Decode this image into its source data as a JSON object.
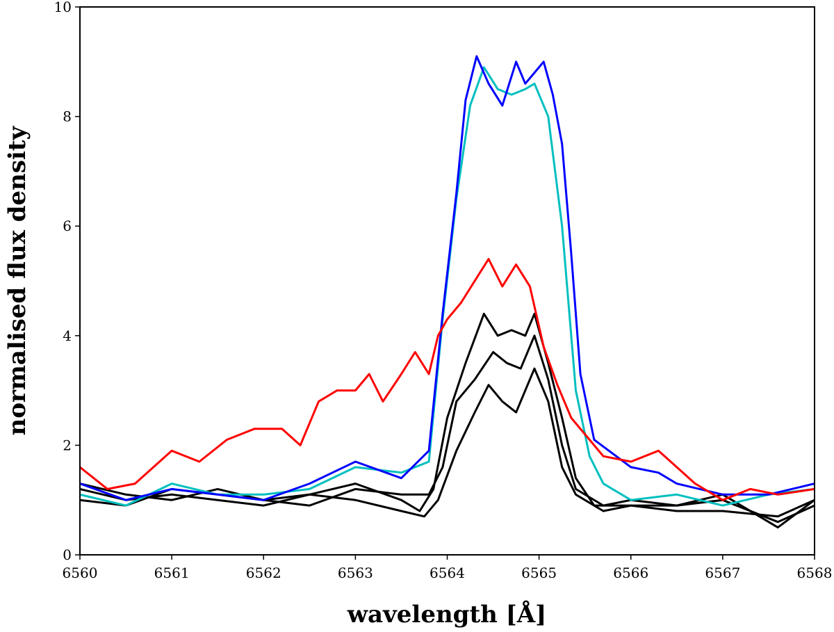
{
  "chart_data": {
    "type": "line",
    "title": "",
    "xlabel": "wavelength [Å]",
    "ylabel": "normalised flux density",
    "xlim": [
      6560,
      6568
    ],
    "ylim": [
      0,
      10
    ],
    "xticks": [
      6560,
      6561,
      6562,
      6563,
      6564,
      6565,
      6566,
      6567,
      6568
    ],
    "yticks": [
      0,
      2,
      4,
      6,
      8,
      10
    ],
    "grid": false,
    "legend": "none",
    "colors": {
      "red": "#ff0000",
      "blue": "#0000ff",
      "cyan": "#00bfbf",
      "black": "#000000"
    },
    "series": [
      {
        "color": "black",
        "points": [
          [
            6560.0,
            1.2
          ],
          [
            6560.5,
            1.0
          ],
          [
            6561.0,
            1.1
          ],
          [
            6561.5,
            1.0
          ],
          [
            6562.0,
            0.9
          ],
          [
            6562.5,
            1.1
          ],
          [
            6563.0,
            1.3
          ],
          [
            6563.5,
            1.0
          ],
          [
            6563.7,
            0.8
          ],
          [
            6563.85,
            1.2
          ],
          [
            6564.0,
            2.5
          ],
          [
            6564.2,
            3.5
          ],
          [
            6564.4,
            4.4
          ],
          [
            6564.55,
            4.0
          ],
          [
            6564.7,
            4.1
          ],
          [
            6564.85,
            4.0
          ],
          [
            6564.95,
            4.4
          ],
          [
            6565.1,
            3.5
          ],
          [
            6565.25,
            2.5
          ],
          [
            6565.4,
            1.4
          ],
          [
            6565.6,
            0.9
          ],
          [
            6566.0,
            0.9
          ],
          [
            6566.5,
            0.8
          ],
          [
            6567.0,
            0.8
          ],
          [
            6567.6,
            0.7
          ],
          [
            6568.0,
            1.0
          ]
        ]
      },
      {
        "color": "black",
        "points": [
          [
            6560.0,
            1.3
          ],
          [
            6560.5,
            1.1
          ],
          [
            6561.0,
            1.0
          ],
          [
            6561.5,
            1.2
          ],
          [
            6562.0,
            1.0
          ],
          [
            6562.5,
            0.9
          ],
          [
            6563.0,
            1.2
          ],
          [
            6563.5,
            1.1
          ],
          [
            6563.8,
            1.1
          ],
          [
            6563.95,
            1.6
          ],
          [
            6564.1,
            2.8
          ],
          [
            6564.3,
            3.2
          ],
          [
            6564.5,
            3.7
          ],
          [
            6564.65,
            3.5
          ],
          [
            6564.8,
            3.4
          ],
          [
            6564.95,
            4.0
          ],
          [
            6565.1,
            3.2
          ],
          [
            6565.25,
            2.0
          ],
          [
            6565.4,
            1.2
          ],
          [
            6565.7,
            0.9
          ],
          [
            6566.0,
            1.0
          ],
          [
            6566.5,
            0.9
          ],
          [
            6567.0,
            1.0
          ],
          [
            6567.6,
            0.6
          ],
          [
            6568.0,
            0.9
          ]
        ]
      },
      {
        "color": "black",
        "points": [
          [
            6560.0,
            1.0
          ],
          [
            6560.5,
            0.9
          ],
          [
            6561.0,
            1.2
          ],
          [
            6561.5,
            1.1
          ],
          [
            6562.0,
            1.0
          ],
          [
            6562.5,
            1.1
          ],
          [
            6563.0,
            1.0
          ],
          [
            6563.5,
            0.8
          ],
          [
            6563.75,
            0.7
          ],
          [
            6563.9,
            1.0
          ],
          [
            6564.1,
            1.9
          ],
          [
            6564.3,
            2.6
          ],
          [
            6564.45,
            3.1
          ],
          [
            6564.6,
            2.8
          ],
          [
            6564.75,
            2.6
          ],
          [
            6564.95,
            3.4
          ],
          [
            6565.1,
            2.8
          ],
          [
            6565.25,
            1.6
          ],
          [
            6565.4,
            1.1
          ],
          [
            6565.7,
            0.8
          ],
          [
            6566.0,
            0.9
          ],
          [
            6566.5,
            0.9
          ],
          [
            6567.0,
            1.1
          ],
          [
            6567.6,
            0.5
          ],
          [
            6568.0,
            1.0
          ]
        ]
      },
      {
        "color": "cyan",
        "points": [
          [
            6560.0,
            1.1
          ],
          [
            6560.5,
            0.9
          ],
          [
            6561.0,
            1.3
          ],
          [
            6561.5,
            1.1
          ],
          [
            6562.0,
            1.1
          ],
          [
            6562.5,
            1.2
          ],
          [
            6563.0,
            1.6
          ],
          [
            6563.5,
            1.5
          ],
          [
            6563.8,
            1.7
          ],
          [
            6563.95,
            4.3
          ],
          [
            6564.1,
            6.5
          ],
          [
            6564.25,
            8.2
          ],
          [
            6564.4,
            8.9
          ],
          [
            6564.55,
            8.5
          ],
          [
            6564.7,
            8.4
          ],
          [
            6564.85,
            8.5
          ],
          [
            6564.95,
            8.6
          ],
          [
            6565.1,
            8.0
          ],
          [
            6565.25,
            6.0
          ],
          [
            6565.4,
            3.0
          ],
          [
            6565.55,
            1.8
          ],
          [
            6565.7,
            1.3
          ],
          [
            6566.0,
            1.0
          ],
          [
            6566.5,
            1.1
          ],
          [
            6567.0,
            0.9
          ],
          [
            6567.5,
            1.1
          ],
          [
            6568.0,
            1.2
          ]
        ]
      },
      {
        "color": "blue",
        "points": [
          [
            6560.0,
            1.3
          ],
          [
            6560.5,
            1.0
          ],
          [
            6561.0,
            1.2
          ],
          [
            6561.5,
            1.1
          ],
          [
            6562.0,
            1.0
          ],
          [
            6562.5,
            1.3
          ],
          [
            6563.0,
            1.7
          ],
          [
            6563.5,
            1.4
          ],
          [
            6563.8,
            1.9
          ],
          [
            6563.95,
            4.4
          ],
          [
            6564.1,
            6.6
          ],
          [
            6564.2,
            8.3
          ],
          [
            6564.32,
            9.1
          ],
          [
            6564.45,
            8.6
          ],
          [
            6564.6,
            8.2
          ],
          [
            6564.75,
            9.0
          ],
          [
            6564.85,
            8.6
          ],
          [
            6564.95,
            8.8
          ],
          [
            6565.05,
            9.0
          ],
          [
            6565.15,
            8.4
          ],
          [
            6565.25,
            7.5
          ],
          [
            6565.35,
            5.5
          ],
          [
            6565.45,
            3.3
          ],
          [
            6565.6,
            2.1
          ],
          [
            6566.0,
            1.6
          ],
          [
            6566.3,
            1.5
          ],
          [
            6566.5,
            1.3
          ],
          [
            6567.0,
            1.1
          ],
          [
            6567.5,
            1.1
          ],
          [
            6568.0,
            1.3
          ]
        ]
      },
      {
        "color": "red",
        "points": [
          [
            6560.0,
            1.6
          ],
          [
            6560.3,
            1.2
          ],
          [
            6560.6,
            1.3
          ],
          [
            6561.0,
            1.9
          ],
          [
            6561.3,
            1.7
          ],
          [
            6561.6,
            2.1
          ],
          [
            6561.9,
            2.3
          ],
          [
            6562.2,
            2.3
          ],
          [
            6562.4,
            2.0
          ],
          [
            6562.6,
            2.8
          ],
          [
            6562.8,
            3.0
          ],
          [
            6563.0,
            3.0
          ],
          [
            6563.15,
            3.3
          ],
          [
            6563.3,
            2.8
          ],
          [
            6563.5,
            3.3
          ],
          [
            6563.65,
            3.7
          ],
          [
            6563.8,
            3.3
          ],
          [
            6563.9,
            4.0
          ],
          [
            6564.0,
            4.3
          ],
          [
            6564.15,
            4.6
          ],
          [
            6564.3,
            5.0
          ],
          [
            6564.45,
            5.4
          ],
          [
            6564.6,
            4.9
          ],
          [
            6564.75,
            5.3
          ],
          [
            6564.9,
            4.9
          ],
          [
            6565.05,
            3.8
          ],
          [
            6565.2,
            3.1
          ],
          [
            6565.35,
            2.5
          ],
          [
            6565.5,
            2.2
          ],
          [
            6565.7,
            1.8
          ],
          [
            6566.0,
            1.7
          ],
          [
            6566.3,
            1.9
          ],
          [
            6566.5,
            1.6
          ],
          [
            6566.7,
            1.3
          ],
          [
            6567.0,
            1.0
          ],
          [
            6567.3,
            1.2
          ],
          [
            6567.6,
            1.1
          ],
          [
            6568.0,
            1.2
          ]
        ]
      }
    ]
  }
}
